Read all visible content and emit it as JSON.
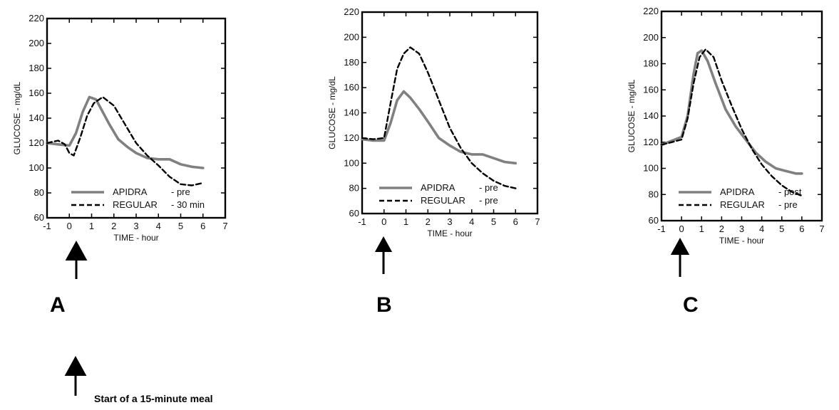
{
  "panels": [
    {
      "letter": "A"
    },
    {
      "letter": "B"
    },
    {
      "letter": "C"
    }
  ],
  "footnote": "Start of a 15-minute meal",
  "colors": {
    "apidra": "#808080",
    "regular": "#000000",
    "axis": "#000000"
  },
  "chart_data": [
    {
      "type": "line",
      "panel": "A",
      "xlabel": "TIME - hour",
      "ylabel": "GLUCOSE - mg/dL",
      "xlim": [
        -1,
        7
      ],
      "ylim": [
        60,
        220
      ],
      "xticks": [
        -1,
        0,
        1,
        2,
        3,
        4,
        5,
        6,
        7
      ],
      "yticks": [
        60,
        80,
        100,
        120,
        140,
        160,
        180,
        200,
        220
      ],
      "legend": [
        {
          "name": "APIDRA",
          "condition": "- pre"
        },
        {
          "name": "REGULAR",
          "condition": "- 30 min"
        }
      ],
      "series": [
        {
          "name": "APIDRA",
          "style": "solid",
          "x": [
            -1,
            -0.5,
            0,
            0.3,
            0.6,
            0.9,
            1.2,
            1.5,
            1.8,
            2.2,
            2.6,
            3.0,
            3.5,
            4.0,
            4.5,
            5.0,
            5.5,
            6.0
          ],
          "y": [
            120,
            119,
            118,
            128,
            145,
            157,
            155,
            145,
            135,
            123,
            117,
            112,
            108,
            107,
            107,
            103,
            101,
            100
          ]
        },
        {
          "name": "REGULAR",
          "style": "dashed",
          "x": [
            -1,
            -0.5,
            -0.2,
            0,
            0.2,
            0.5,
            0.8,
            1.1,
            1.5,
            2.0,
            2.5,
            3.0,
            3.5,
            4.0,
            4.5,
            5.0,
            5.5,
            6.0
          ],
          "y": [
            120,
            122,
            119,
            112,
            110,
            125,
            142,
            152,
            157,
            150,
            135,
            120,
            110,
            102,
            93,
            87,
            86,
            88
          ]
        }
      ]
    },
    {
      "type": "line",
      "panel": "B",
      "xlabel": "TIME - hour",
      "ylabel": "GLUCOSE - mg/dL",
      "xlim": [
        -1,
        7
      ],
      "ylim": [
        60,
        220
      ],
      "xticks": [
        -1,
        0,
        1,
        2,
        3,
        4,
        5,
        6,
        7
      ],
      "yticks": [
        60,
        80,
        100,
        120,
        140,
        160,
        180,
        200,
        220
      ],
      "legend": [
        {
          "name": "APIDRA",
          "condition": "- pre"
        },
        {
          "name": "REGULAR",
          "condition": "- pre"
        }
      ],
      "series": [
        {
          "name": "APIDRA",
          "style": "solid",
          "x": [
            -1,
            -0.5,
            0,
            0.3,
            0.6,
            0.9,
            1.2,
            1.6,
            2.0,
            2.5,
            3.0,
            3.5,
            4.0,
            4.5,
            5.0,
            5.5,
            6.0
          ],
          "y": [
            119,
            118,
            118,
            132,
            150,
            157,
            152,
            143,
            133,
            120,
            114,
            109,
            107,
            107,
            104,
            101,
            100
          ]
        },
        {
          "name": "REGULAR",
          "style": "dashed",
          "x": [
            -1,
            -0.5,
            0,
            0.3,
            0.6,
            0.9,
            1.2,
            1.6,
            2.0,
            2.5,
            3.0,
            3.5,
            4.0,
            4.5,
            5.0,
            5.5,
            6.0
          ],
          "y": [
            120,
            119,
            120,
            148,
            175,
            187,
            192,
            187,
            172,
            150,
            128,
            112,
            100,
            92,
            86,
            82,
            80
          ]
        }
      ]
    },
    {
      "type": "line",
      "panel": "C",
      "xlabel": "TIME - hour",
      "ylabel": "GLUCOSE - mg/dL",
      "xlim": [
        -1,
        7
      ],
      "ylim": [
        60,
        220
      ],
      "xticks": [
        -1,
        0,
        1,
        2,
        3,
        4,
        5,
        6,
        7
      ],
      "yticks": [
        60,
        80,
        100,
        120,
        140,
        160,
        180,
        200,
        220
      ],
      "legend": [
        {
          "name": "APIDRA",
          "condition": "- post"
        },
        {
          "name": "REGULAR",
          "condition": "- pre"
        }
      ],
      "series": [
        {
          "name": "APIDRA",
          "style": "solid",
          "x": [
            -1,
            -0.5,
            0,
            0.3,
            0.6,
            0.8,
            1.0,
            1.3,
            1.7,
            2.2,
            2.7,
            3.2,
            3.7,
            4.2,
            4.7,
            5.2,
            5.7,
            6.0
          ],
          "y": [
            118,
            121,
            124,
            140,
            172,
            188,
            190,
            182,
            165,
            145,
            132,
            122,
            112,
            105,
            100,
            98,
            96,
            96
          ]
        },
        {
          "name": "REGULAR",
          "style": "dashed",
          "x": [
            -1,
            -0.5,
            0,
            0.3,
            0.6,
            0.9,
            1.2,
            1.6,
            2.0,
            2.5,
            3.0,
            3.5,
            4.0,
            4.5,
            5.0,
            5.5,
            6.0
          ],
          "y": [
            118,
            120,
            122,
            138,
            165,
            185,
            191,
            185,
            167,
            148,
            130,
            115,
            103,
            94,
            87,
            82,
            79
          ]
        }
      ]
    }
  ]
}
